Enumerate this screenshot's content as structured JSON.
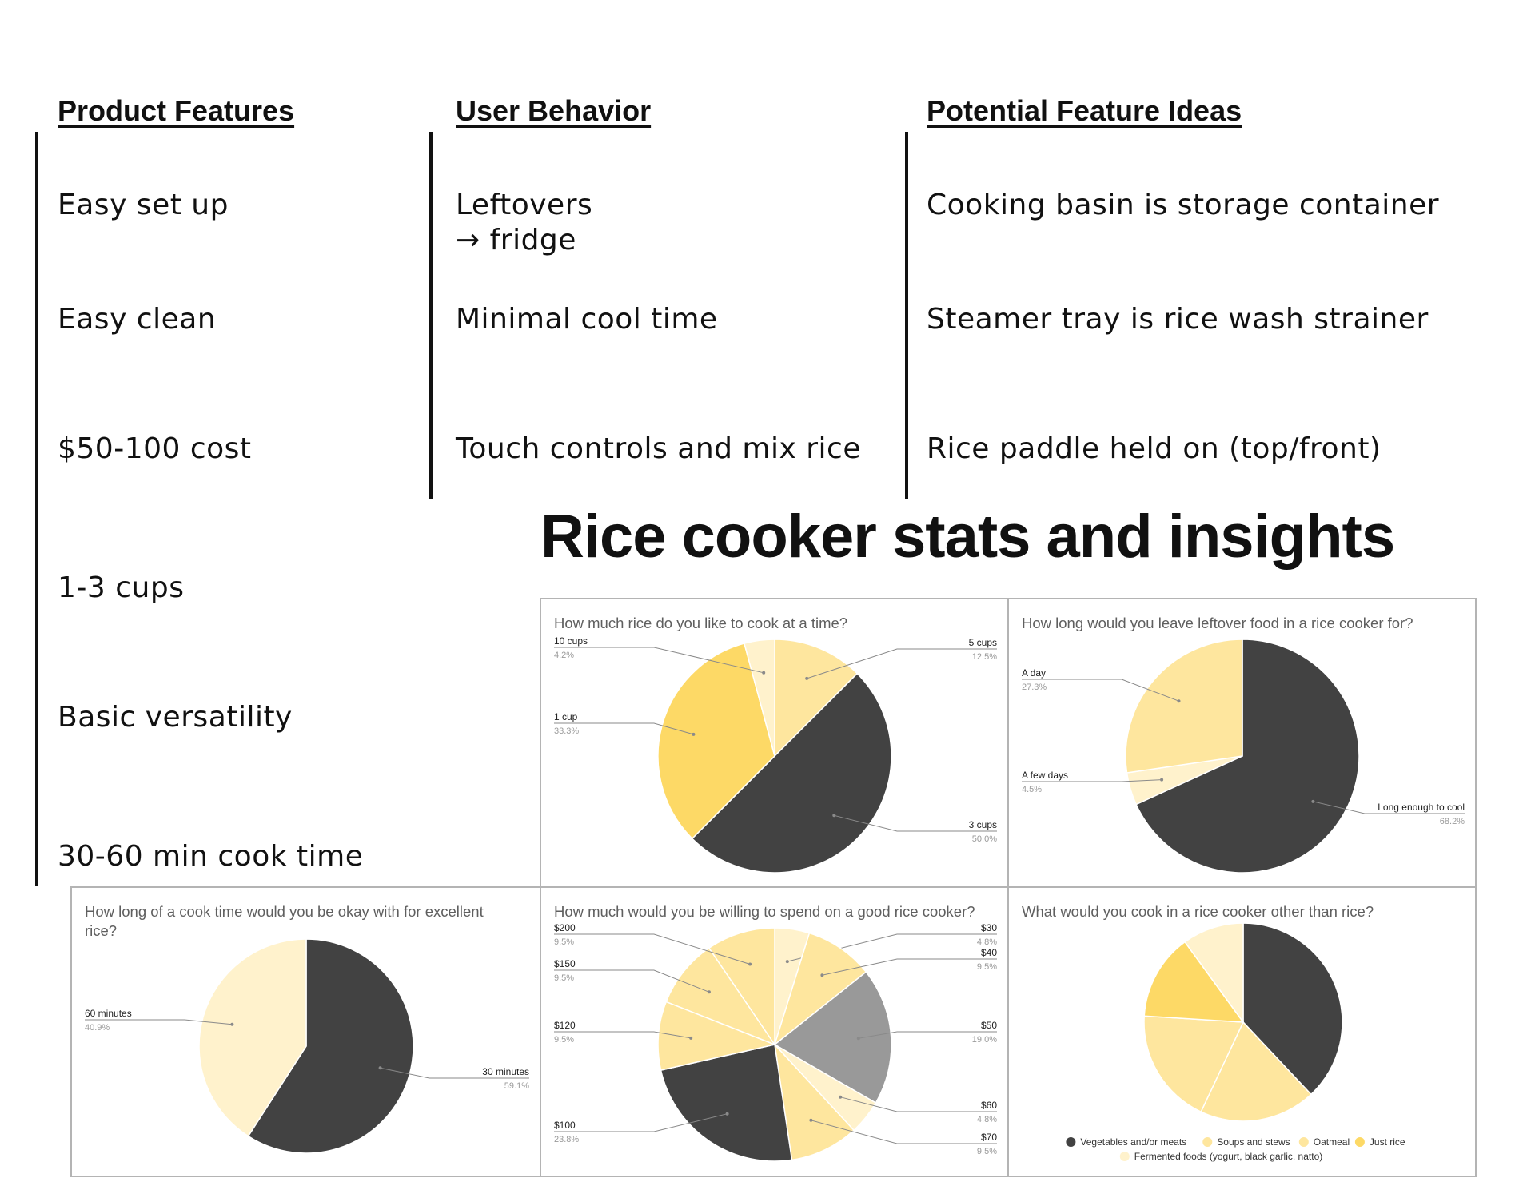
{
  "columns": [
    {
      "heading": "Product Features",
      "items": [
        "Easy set up",
        "Easy clean",
        "$50-100 cost",
        "1-3 cups",
        "Basic versatility",
        "30-60 min cook time"
      ]
    },
    {
      "heading": "User Behavior",
      "items": [
        "Leftovers\n→ fridge",
        "Minimal cool time",
        "Touch controls and mix rice"
      ]
    },
    {
      "heading": "Potential Feature Ideas",
      "items": [
        "Cooking basin is storage container",
        "Steamer tray is rice wash strainer",
        "Rice paddle held on (top/front)"
      ]
    }
  ],
  "section_title": "Rice cooker stats and insights",
  "chart_data": [
    {
      "type": "pie",
      "title": "How much rice do you like to cook at a time?",
      "slices": [
        {
          "label": "5 cups",
          "value": 12.5,
          "pct": "12.5%",
          "color": "#fee69e"
        },
        {
          "label": "3 cups",
          "value": 50.0,
          "pct": "50.0%",
          "color": "#424242"
        },
        {
          "label": "1 cup",
          "value": 33.3,
          "pct": "33.3%",
          "color": "#fdd966"
        },
        {
          "label": "10 cups",
          "value": 4.2,
          "pct": "4.2%",
          "color": "#fff2cc"
        }
      ]
    },
    {
      "type": "pie",
      "title": "How long would you leave leftover food in a rice cooker for?",
      "slices": [
        {
          "label": "Long enough to cool",
          "value": 68.2,
          "pct": "68.2%",
          "color": "#424242"
        },
        {
          "label": "A few days",
          "value": 4.5,
          "pct": "4.5%",
          "color": "#fff2cc"
        },
        {
          "label": "A day",
          "value": 27.3,
          "pct": "27.3%",
          "color": "#fee69e"
        }
      ]
    },
    {
      "type": "pie",
      "title": "How long of a cook time would you be okay with for excellent rice?",
      "slices": [
        {
          "label": "30 minutes",
          "value": 59.1,
          "pct": "59.1%",
          "color": "#424242"
        },
        {
          "label": "60 minutes",
          "value": 40.9,
          "pct": "40.9%",
          "color": "#fff2cc"
        }
      ]
    },
    {
      "type": "pie",
      "title": "How much would you be willing to spend on a good rice cooker?",
      "slices": [
        {
          "label": "$30",
          "value": 4.8,
          "pct": "4.8%",
          "color": "#fff2cc"
        },
        {
          "label": "$40",
          "value": 9.5,
          "pct": "9.5%",
          "color": "#fee69e"
        },
        {
          "label": "$50",
          "value": 19.0,
          "pct": "19.0%",
          "color": "#999999"
        },
        {
          "label": "$60",
          "value": 4.8,
          "pct": "4.8%",
          "color": "#fff2cc"
        },
        {
          "label": "$70",
          "value": 9.5,
          "pct": "9.5%",
          "color": "#fee69e"
        },
        {
          "label": "$100",
          "value": 23.8,
          "pct": "23.8%",
          "color": "#424242"
        },
        {
          "label": "$120",
          "value": 9.5,
          "pct": "9.5%",
          "color": "#fee69e"
        },
        {
          "label": "$150",
          "value": 9.5,
          "pct": "9.5%",
          "color": "#fee69e"
        },
        {
          "label": "$200",
          "value": 9.5,
          "pct": "9.5%",
          "color": "#fee69e"
        }
      ]
    },
    {
      "type": "pie",
      "title": "What would you cook in a rice cooker other than rice?",
      "legend": "bottom",
      "slices": [
        {
          "label": "Vegetables and/or meats",
          "value": 38,
          "color": "#424242"
        },
        {
          "label": "Soups and stews",
          "value": 19,
          "color": "#fee69e"
        },
        {
          "label": "Oatmeal",
          "value": 19,
          "color": "#fee69e"
        },
        {
          "label": "Just rice",
          "value": 14,
          "color": "#fdd966"
        },
        {
          "label": "Fermented foods (yogurt, black garlic, natto)",
          "value": 10,
          "color": "#fff2cc"
        }
      ]
    }
  ]
}
